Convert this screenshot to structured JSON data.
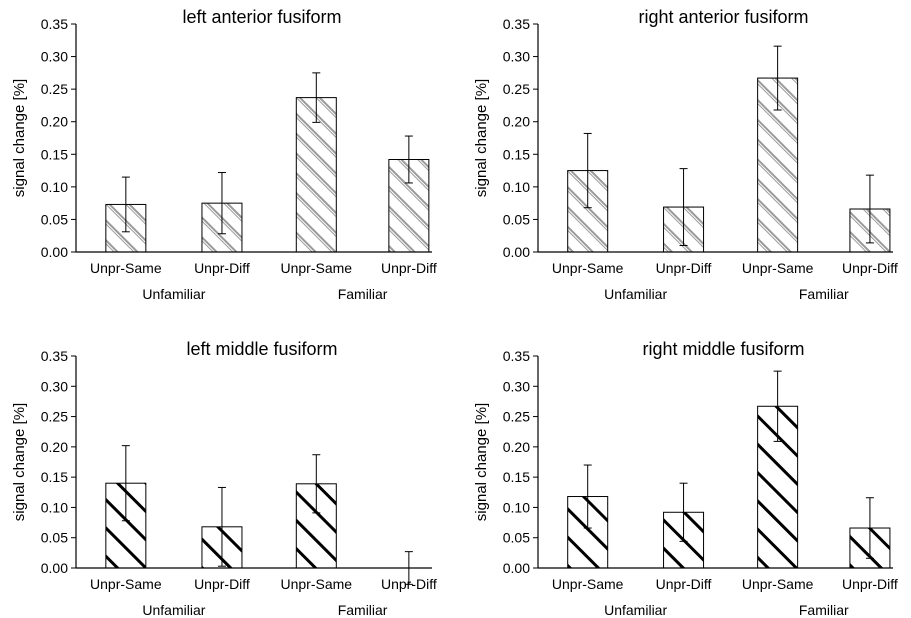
{
  "chart_data": [
    {
      "type": "bar",
      "title": "left anterior fusiform",
      "ylabel": "signal change [%]",
      "xlabel": "",
      "ylim": [
        0,
        0.35
      ],
      "yticks": [
        "0.00",
        "0.05",
        "0.10",
        "0.15",
        "0.20",
        "0.25",
        "0.30",
        "0.35"
      ],
      "categories": [
        "Unpr-Same",
        "Unpr-Diff",
        "Unpr-Same",
        "Unpr-Diff"
      ],
      "groups": [
        {
          "label": "Unfamiliar",
          "span": [
            0,
            1
          ]
        },
        {
          "label": "Familiar",
          "span": [
            2,
            3
          ]
        }
      ],
      "values": [
        0.073,
        0.075,
        0.237,
        0.142
      ],
      "errors": [
        0.042,
        0.047,
        0.038,
        0.036
      ],
      "pattern": "fine-diagonal"
    },
    {
      "type": "bar",
      "title": "right anterior fusiform",
      "ylabel": "signal change [%]",
      "xlabel": "",
      "ylim": [
        0,
        0.35
      ],
      "yticks": [
        "0.00",
        "0.05",
        "0.10",
        "0.15",
        "0.20",
        "0.25",
        "0.30",
        "0.35"
      ],
      "categories": [
        "Unpr-Same",
        "Unpr-Diff",
        "Unpr-Same",
        "Unpr-Diff"
      ],
      "groups": [
        {
          "label": "Unfamiliar",
          "span": [
            0,
            1
          ]
        },
        {
          "label": "Familiar",
          "span": [
            2,
            3
          ]
        }
      ],
      "values": [
        0.125,
        0.069,
        0.267,
        0.066
      ],
      "errors": [
        0.057,
        0.059,
        0.049,
        0.052
      ],
      "pattern": "fine-diagonal"
    },
    {
      "type": "bar",
      "title": "left middle fusiform",
      "ylabel": "signal change [%]",
      "xlabel": "",
      "ylim": [
        0,
        0.35
      ],
      "yticks": [
        "0.00",
        "0.05",
        "0.10",
        "0.15",
        "0.20",
        "0.25",
        "0.30",
        "0.35"
      ],
      "categories": [
        "Unpr-Same",
        "Unpr-Diff",
        "Unpr-Same",
        "Unpr-Diff"
      ],
      "groups": [
        {
          "label": "Unfamiliar",
          "span": [
            0,
            1
          ]
        },
        {
          "label": "Familiar",
          "span": [
            2,
            3
          ]
        }
      ],
      "values": [
        0.14,
        0.068,
        0.139,
        0.0
      ],
      "errors": [
        0.062,
        0.065,
        0.048,
        0.027
      ],
      "pattern": "bold-diagonal"
    },
    {
      "type": "bar",
      "title": "right middle fusiform",
      "ylabel": "signal change [%]",
      "xlabel": "",
      "ylim": [
        0,
        0.35
      ],
      "yticks": [
        "0.00",
        "0.05",
        "0.10",
        "0.15",
        "0.20",
        "0.25",
        "0.30",
        "0.35"
      ],
      "categories": [
        "Unpr-Same",
        "Unpr-Diff",
        "Unpr-Same",
        "Unpr-Diff"
      ],
      "groups": [
        {
          "label": "Unfamiliar",
          "span": [
            0,
            1
          ]
        },
        {
          "label": "Familiar",
          "span": [
            2,
            3
          ]
        }
      ],
      "values": [
        0.118,
        0.092,
        0.267,
        0.066
      ],
      "errors": [
        0.052,
        0.048,
        0.058,
        0.05
      ],
      "pattern": "bold-diagonal"
    }
  ]
}
